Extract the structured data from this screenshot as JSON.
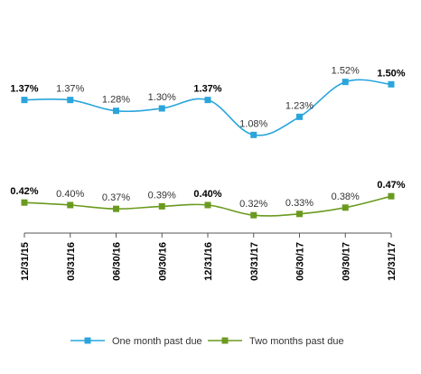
{
  "chart_data": {
    "type": "line",
    "categories": [
      "12/31/15",
      "03/31/16",
      "06/30/16",
      "09/30/16",
      "12/31/16",
      "03/31/17",
      "06/30/17",
      "09/30/17",
      "12/31/17"
    ],
    "series": [
      {
        "name": "One month past due",
        "color": "#2aa5dc",
        "marker": "square",
        "values": [
          1.37,
          1.37,
          1.28,
          1.3,
          1.37,
          1.08,
          1.23,
          1.52,
          1.5
        ],
        "labels": [
          "1.37%",
          "1.37%",
          "1.28%",
          "1.30%",
          "1.37%",
          "1.08%",
          "1.23%",
          "1.52%",
          "1.50%"
        ],
        "bold_label_indices": [
          0,
          4,
          8
        ]
      },
      {
        "name": "Two months past due",
        "color": "#6a9a1f",
        "marker": "square",
        "values": [
          0.42,
          0.4,
          0.37,
          0.39,
          0.4,
          0.32,
          0.33,
          0.38,
          0.47
        ],
        "labels": [
          "0.42%",
          "0.40%",
          "0.37%",
          "0.39%",
          "0.40%",
          "0.32%",
          "0.33%",
          "0.38%",
          "0.47%"
        ],
        "bold_label_indices": [
          0,
          4,
          8
        ]
      }
    ],
    "legend_position": "bottom",
    "grid": false
  }
}
